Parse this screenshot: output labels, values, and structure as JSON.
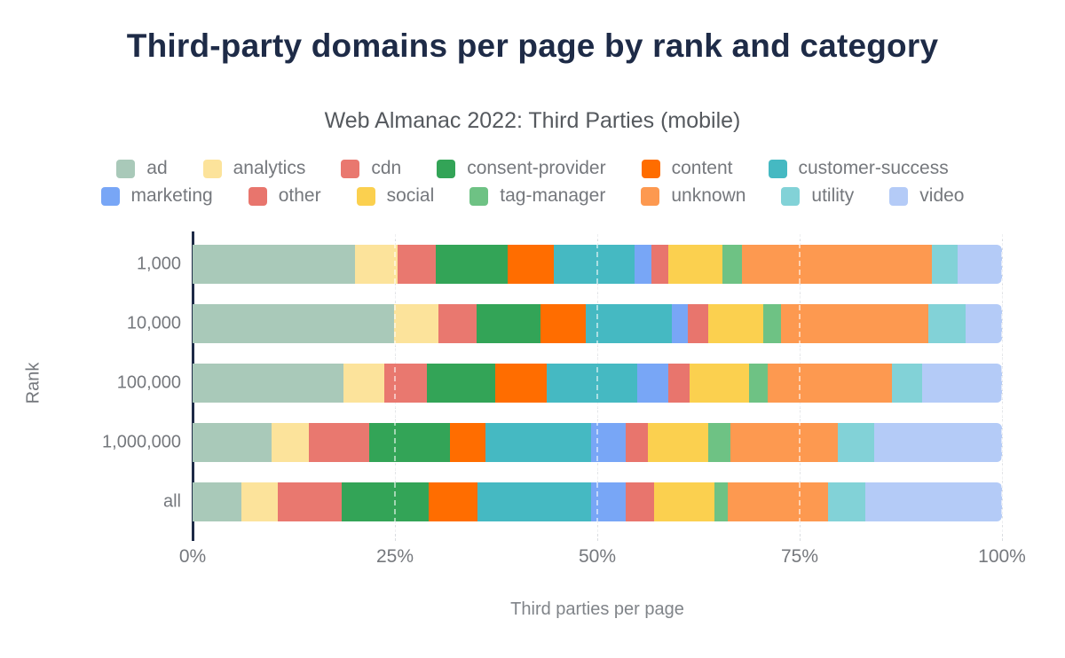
{
  "chart_data": {
    "type": "bar",
    "stacked": true,
    "orientation": "horizontal",
    "title": "Third-party domains per page by rank and category",
    "subtitle": "Web Almanac 2022: Third Parties (mobile)",
    "xlabel": "Third parties per page",
    "ylabel": "Rank",
    "xlim": [
      0,
      100
    ],
    "x_tick_values": [
      0,
      25,
      50,
      75,
      100
    ],
    "x_tick_labels": [
      "0%",
      "25%",
      "50%",
      "75%",
      "100%"
    ],
    "categories": [
      "1,000",
      "10,000",
      "100,000",
      "1,000,000",
      "all"
    ],
    "grid": true,
    "legend_position": "top",
    "series": [
      {
        "name": "ad",
        "color": "#a9c9b9",
        "values": [
          20.1,
          24.9,
          18.6,
          9.8,
          6.0
        ]
      },
      {
        "name": "analytics",
        "color": "#fce39b",
        "values": [
          5.2,
          5.5,
          5.1,
          4.6,
          4.5
        ]
      },
      {
        "name": "cdn",
        "color": "#e9786f",
        "values": [
          4.8,
          4.7,
          5.2,
          7.4,
          7.9
        ]
      },
      {
        "name": "consent-provider",
        "color": "#33a457",
        "values": [
          8.8,
          7.9,
          8.5,
          10.0,
          10.8
        ]
      },
      {
        "name": "content",
        "color": "#ff6d00",
        "values": [
          5.7,
          5.6,
          6.3,
          4.4,
          6.0
        ]
      },
      {
        "name": "customer-success",
        "color": "#45b9c2",
        "values": [
          10.0,
          10.6,
          11.2,
          13.0,
          14.0
        ]
      },
      {
        "name": "marketing",
        "color": "#78a6f6",
        "values": [
          2.1,
          2.0,
          3.9,
          4.3,
          4.3
        ]
      },
      {
        "name": "other",
        "color": "#e8756d",
        "values": [
          2.1,
          2.5,
          2.6,
          2.8,
          3.5
        ]
      },
      {
        "name": "social",
        "color": "#fbd04f",
        "values": [
          6.7,
          6.8,
          7.4,
          7.4,
          7.5
        ]
      },
      {
        "name": "tag-manager",
        "color": "#6ec284",
        "values": [
          2.4,
          2.2,
          2.3,
          2.8,
          1.6
        ]
      },
      {
        "name": "unknown",
        "color": "#fd9950",
        "values": [
          23.4,
          18.2,
          15.3,
          13.2,
          12.4
        ]
      },
      {
        "name": "utility",
        "color": "#82d2d7",
        "values": [
          3.2,
          4.6,
          3.7,
          4.5,
          4.6
        ]
      },
      {
        "name": "video",
        "color": "#b4cbf7",
        "values": [
          5.5,
          4.5,
          9.9,
          15.8,
          16.9
        ]
      }
    ],
    "legend_rows": [
      [
        "ad",
        "analytics",
        "cdn",
        "consent-provider",
        "content",
        "customer-success"
      ],
      [
        "marketing",
        "other",
        "social",
        "tag-manager",
        "unknown",
        "utility",
        "video"
      ]
    ]
  },
  "colors": {
    "title": "#1e2b47",
    "subtitle": "#55595e",
    "axis_line": "#1e2b47",
    "tick_label": "#75787d",
    "gridline": "#d9dce0",
    "background": "#ffffff"
  }
}
